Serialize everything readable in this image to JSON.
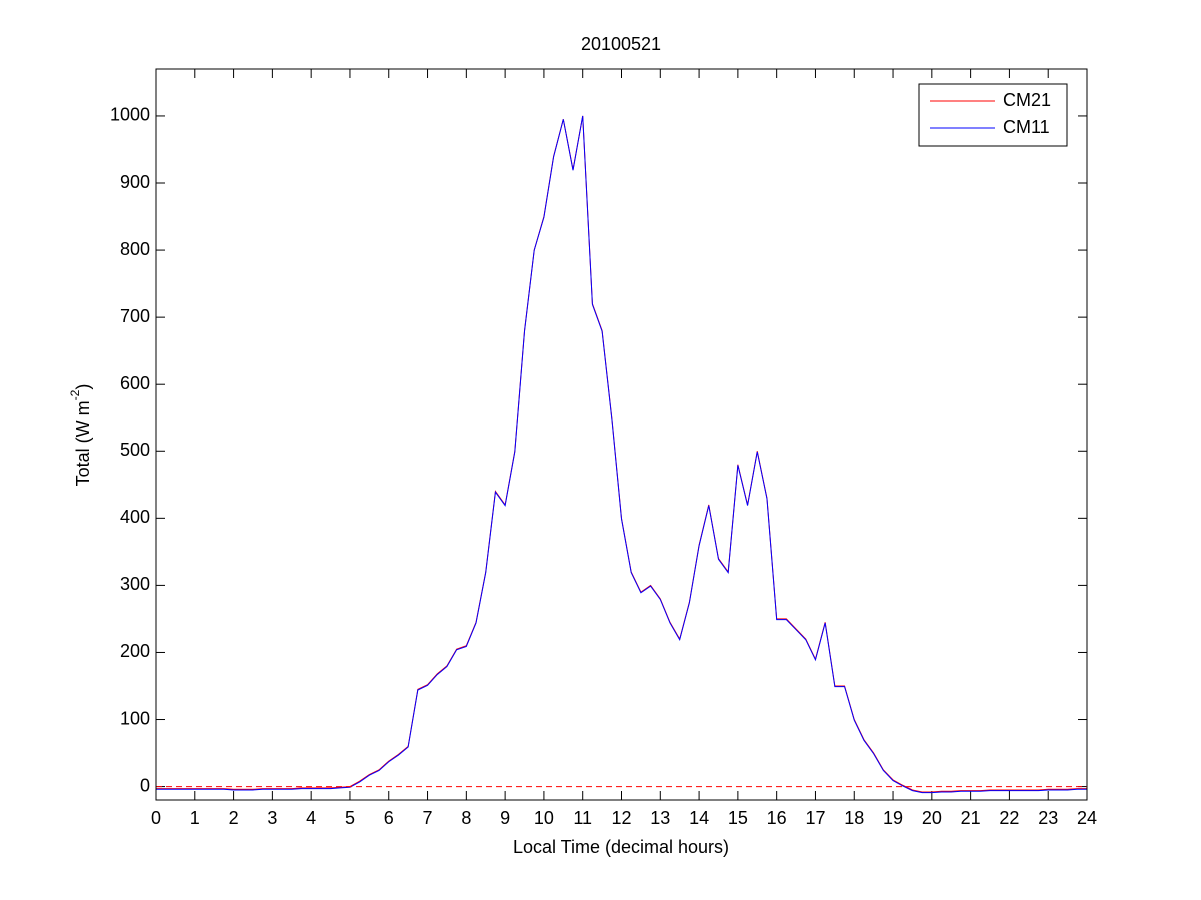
{
  "chart_data": {
    "type": "line",
    "title": "20100521",
    "xlabel": "Local Time (decimal hours)",
    "ylabel_parts": [
      "Total (W m",
      "-2",
      ")"
    ],
    "x": [
      0,
      0.25,
      0.5,
      0.75,
      1,
      1.25,
      1.5,
      1.75,
      2,
      2.25,
      2.5,
      2.75,
      3,
      3.25,
      3.5,
      3.75,
      4,
      4.25,
      4.5,
      4.75,
      5,
      5.25,
      5.5,
      5.75,
      6,
      6.25,
      6.5,
      6.75,
      7,
      7.25,
      7.5,
      7.75,
      8,
      8.25,
      8.5,
      8.75,
      9,
      9.25,
      9.5,
      9.75,
      10,
      10.25,
      10.5,
      10.75,
      11,
      11.25,
      11.5,
      11.75,
      12,
      12.25,
      12.5,
      12.75,
      13,
      13.25,
      13.5,
      13.75,
      14,
      14.25,
      14.5,
      14.75,
      15,
      15.25,
      15.5,
      15.75,
      16,
      16.25,
      16.5,
      16.75,
      17,
      17.25,
      17.5,
      17.75,
      18,
      18.25,
      18.5,
      18.75,
      19,
      19.25,
      19.5,
      19.75,
      20,
      20.25,
      20.5,
      20.75,
      21,
      21.25,
      21.5,
      21.75,
      22,
      22.25,
      22.5,
      22.75,
      23,
      23.25,
      23.5,
      23.75,
      24
    ],
    "series": [
      {
        "name": "CM21",
        "color": "#ff0000",
        "values": [
          -3,
          -3,
          -3,
          -3,
          -3,
          -3,
          -3,
          -3,
          -4,
          -4,
          -4,
          -3,
          -3,
          -3,
          -3,
          -2,
          -2,
          -2,
          -2,
          -1,
          0,
          8,
          18,
          25,
          38,
          48,
          60,
          145,
          152,
          168,
          180,
          205,
          210,
          245,
          320,
          440,
          420,
          500,
          680,
          800,
          850,
          940,
          995,
          920,
          1000,
          720,
          680,
          550,
          400,
          320,
          290,
          300,
          280,
          245,
          220,
          275,
          360,
          420,
          340,
          320,
          480,
          420,
          500,
          430,
          250,
          250,
          235,
          220,
          190,
          245,
          150,
          150,
          100,
          70,
          50,
          25,
          10,
          2,
          -5,
          -8,
          -8,
          -7,
          -7,
          -6,
          -6,
          -6,
          -5,
          -5,
          -5,
          -5,
          -5,
          -5,
          -4,
          -4,
          -4,
          -3,
          -3
        ]
      },
      {
        "name": "CM11",
        "color": "#0000ff",
        "values": [
          -4,
          -4,
          -4,
          -4,
          -4,
          -4,
          -4,
          -4,
          -5,
          -5,
          -5,
          -4,
          -4,
          -4,
          -4,
          -3,
          -3,
          -3,
          -3,
          -2,
          -1,
          7,
          17,
          24,
          37,
          47,
          59,
          144,
          151,
          167,
          179,
          204,
          209,
          244,
          319,
          439,
          419,
          499,
          679,
          800,
          849,
          939,
          995,
          919,
          1000,
          719,
          679,
          549,
          399,
          319,
          289,
          299,
          279,
          244,
          219,
          274,
          359,
          419,
          339,
          319,
          479,
          419,
          499,
          429,
          249,
          249,
          234,
          219,
          189,
          244,
          149,
          149,
          99,
          69,
          49,
          24,
          9,
          1,
          -6,
          -9,
          -9,
          -8,
          -8,
          -7,
          -7,
          -7,
          -6,
          -6,
          -6,
          -6,
          -6,
          -6,
          -5,
          -5,
          -5,
          -4,
          -4
        ]
      }
    ],
    "hline": {
      "value": 0,
      "color": "#ff0000",
      "style": "dashed"
    },
    "xlim": [
      0,
      24
    ],
    "xticks": [
      0,
      1,
      2,
      3,
      4,
      5,
      6,
      7,
      8,
      9,
      10,
      11,
      12,
      13,
      14,
      15,
      16,
      17,
      18,
      19,
      20,
      21,
      22,
      23,
      24
    ],
    "ylim": [
      -20,
      1070
    ],
    "yticks": [
      0,
      100,
      200,
      300,
      400,
      500,
      600,
      700,
      800,
      900,
      1000
    ],
    "grid": false,
    "legend": "upper right"
  }
}
